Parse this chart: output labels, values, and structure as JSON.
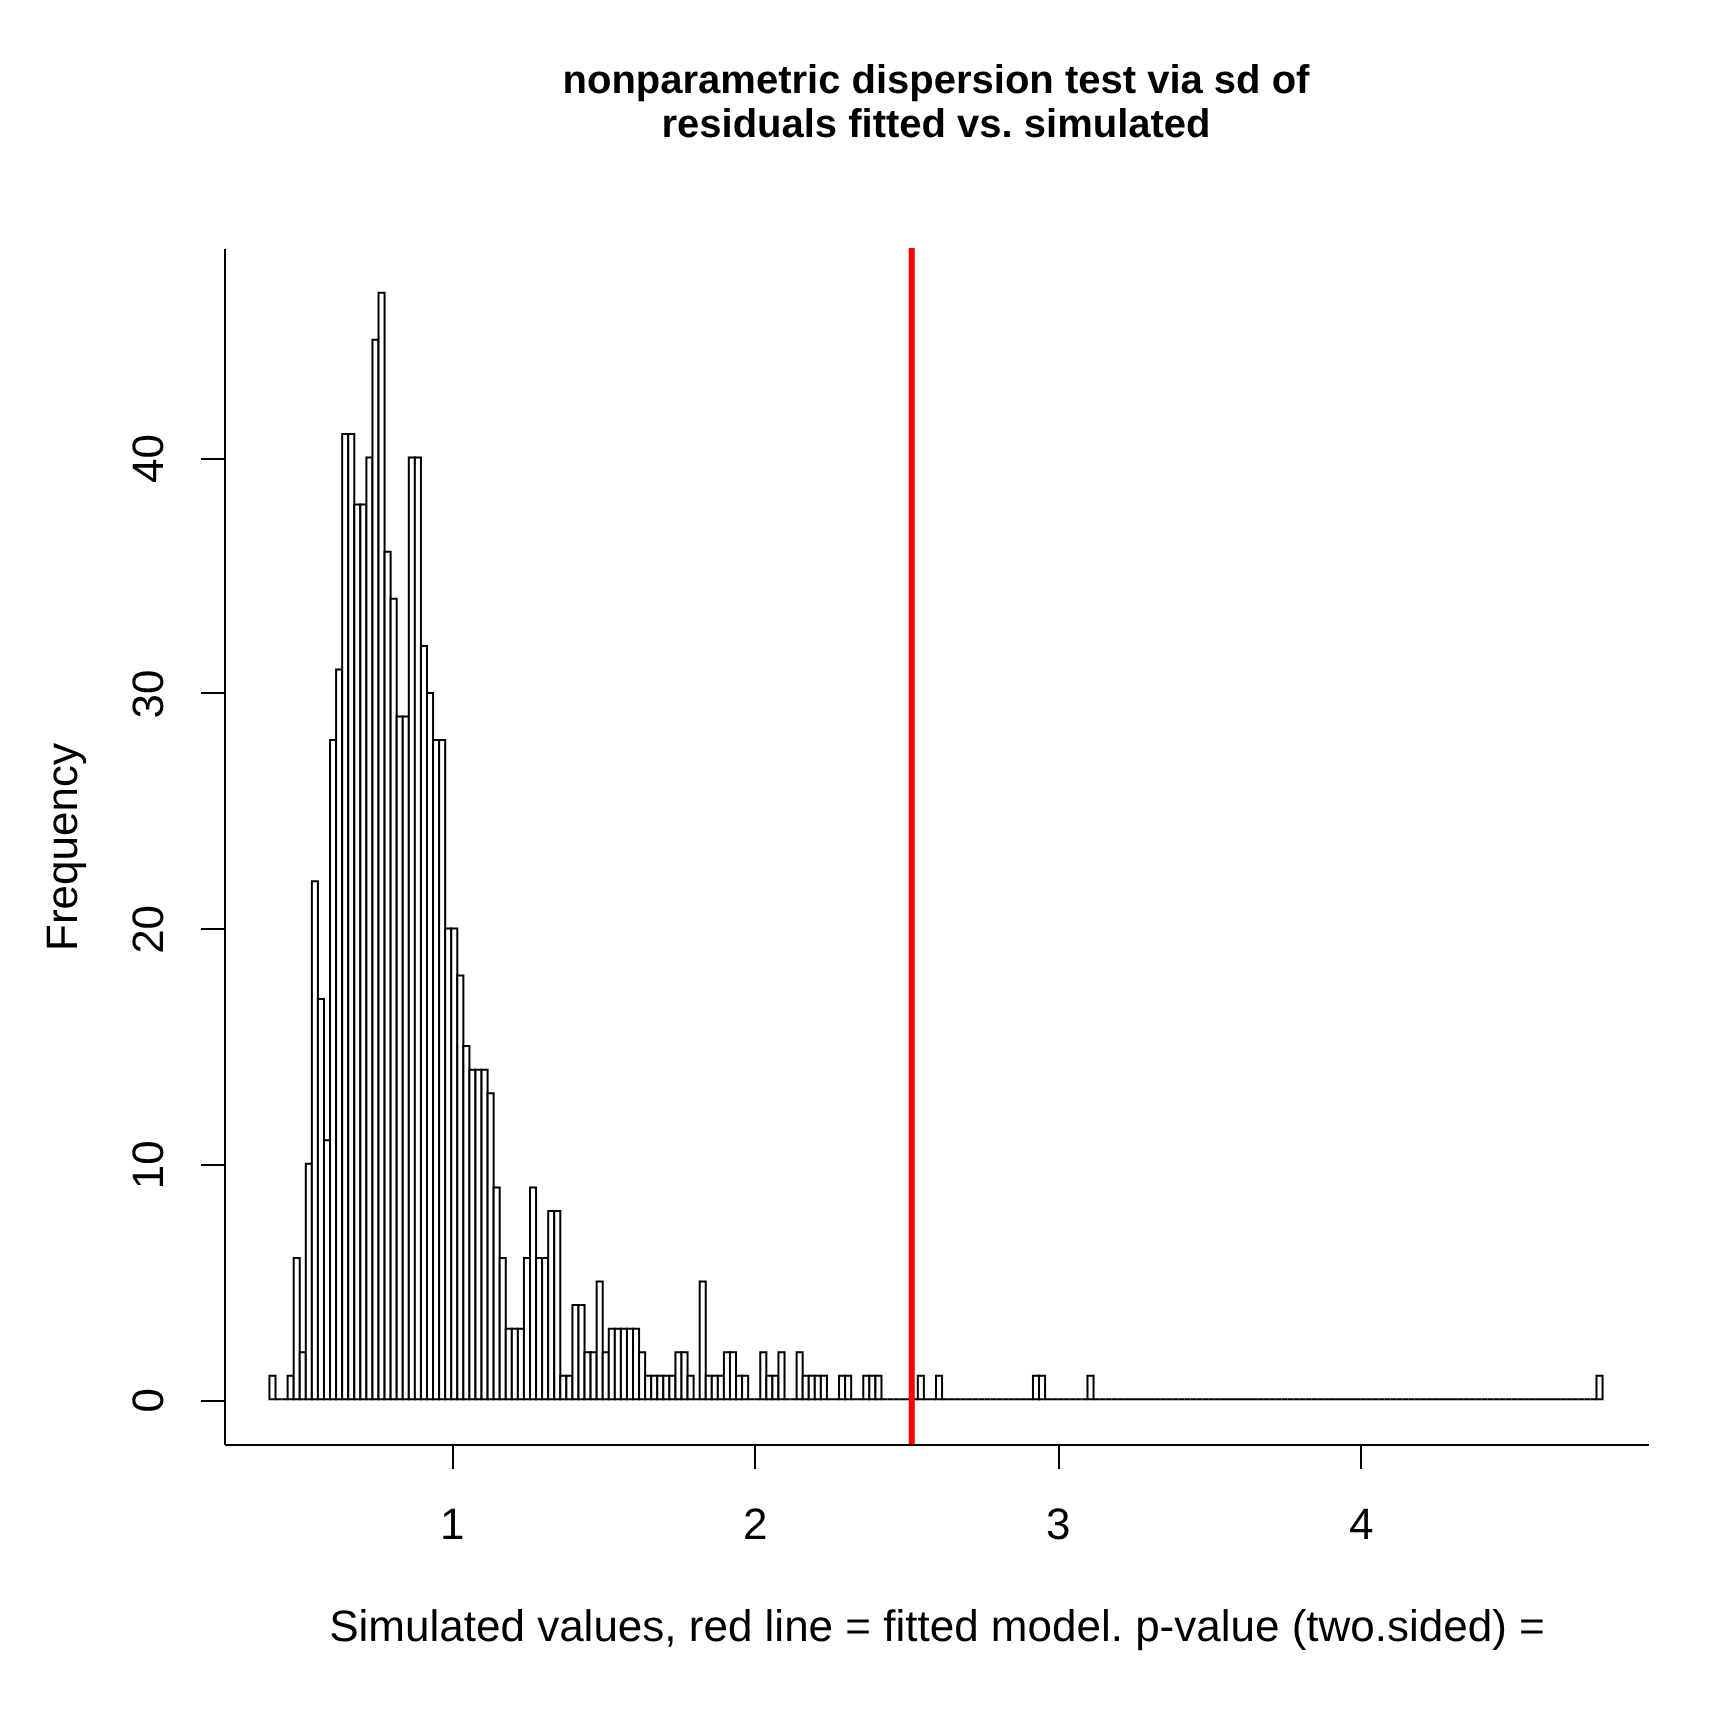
{
  "chart_data": {
    "type": "histogram",
    "title": "nonparametric dispersion test via sd of residuals fitted vs. simulated",
    "xlabel": "Simulated values, red line = fitted model. p-value (two.sided) =",
    "ylabel": "Frequency",
    "bins": [
      0.4,
      0.42,
      0.44,
      0.46,
      0.48,
      0.5,
      0.52,
      0.54,
      0.56,
      0.58,
      0.6,
      0.62,
      0.64,
      0.66,
      0.68,
      0.7,
      0.72,
      0.74,
      0.76,
      0.78,
      0.8,
      0.82,
      0.84,
      0.86,
      0.88,
      0.9,
      0.92,
      0.94,
      0.96,
      0.98,
      1.0,
      1.02,
      1.04,
      1.06,
      1.08,
      1.1,
      1.12,
      1.14,
      1.16,
      1.18,
      1.2,
      1.22,
      1.24,
      1.26,
      1.28,
      1.3,
      1.32,
      1.34,
      1.36,
      1.38,
      1.4,
      1.42,
      1.44,
      1.46,
      1.48,
      1.5,
      1.52,
      1.54,
      1.56,
      1.58,
      1.6,
      1.62,
      1.64,
      1.66,
      1.68,
      1.7,
      1.72,
      1.74,
      1.76,
      1.78,
      1.8,
      1.82,
      1.84,
      1.86,
      1.88,
      1.9,
      1.92,
      1.94,
      1.96,
      1.98,
      2.0,
      2.02,
      2.04,
      2.06,
      2.08,
      2.1,
      2.12,
      2.14,
      2.16,
      2.18,
      2.2,
      2.22,
      2.24,
      2.26,
      2.28,
      2.3,
      2.32,
      2.34,
      2.36,
      2.38,
      2.4,
      2.42,
      2.44,
      2.46,
      2.48,
      2.5,
      2.52,
      2.54,
      2.56,
      2.58,
      2.6,
      2.62,
      2.64,
      2.66,
      2.68,
      2.7,
      2.72,
      2.74,
      2.76,
      2.78,
      2.8,
      2.82,
      2.84,
      2.86,
      2.88,
      2.9,
      2.92,
      2.94,
      2.96,
      2.98,
      3.0,
      3.02,
      3.04,
      3.06,
      3.08,
      3.1,
      3.12,
      3.14,
      3.16,
      3.18,
      3.2,
      3.22,
      3.24,
      3.26,
      3.28,
      3.3,
      3.32,
      3.34,
      3.36,
      3.38,
      3.4,
      3.42,
      3.44,
      3.46,
      3.48,
      3.5,
      3.52,
      3.54,
      3.56,
      3.58,
      3.6,
      3.62,
      3.64,
      3.66,
      3.68,
      3.7,
      3.72,
      3.74,
      3.76,
      3.78,
      3.8,
      3.82,
      3.84,
      3.86,
      3.88,
      3.9,
      3.92,
      3.94,
      3.96,
      3.98,
      4.0,
      4.02,
      4.04,
      4.06,
      4.08,
      4.1,
      4.12,
      4.14,
      4.16,
      4.18,
      4.2,
      4.22,
      4.24,
      4.26,
      4.28,
      4.3,
      4.32,
      4.34,
      4.36,
      4.38,
      4.4,
      4.42,
      4.44,
      4.46,
      4.48,
      4.5,
      4.52,
      4.54,
      4.56,
      4.58,
      4.6,
      4.62,
      4.64,
      4.66,
      4.68,
      4.7,
      4.72,
      4.74,
      4.76,
      4.78,
      4.8
    ],
    "values": [
      1,
      0,
      0,
      1,
      6,
      2,
      10,
      22,
      17,
      11,
      28,
      31,
      41,
      41,
      38,
      38,
      40,
      45,
      47,
      36,
      34,
      29,
      29,
      40,
      40,
      32,
      30,
      28,
      28,
      20,
      20,
      18,
      15,
      14,
      14,
      14,
      13,
      9,
      6,
      3,
      3,
      3,
      6,
      9,
      6,
      6,
      8,
      8,
      1,
      1,
      4,
      4,
      2,
      2,
      5,
      2,
      3,
      3,
      3,
      3,
      3,
      2,
      1,
      1,
      1,
      1,
      1,
      2,
      2,
      1,
      0,
      5,
      1,
      1,
      1,
      2,
      2,
      1,
      1,
      0,
      0,
      2,
      1,
      1,
      2,
      0,
      0,
      2,
      1,
      1,
      1,
      1,
      0,
      0,
      1,
      1,
      0,
      0,
      1,
      1,
      1,
      0,
      0,
      0,
      0,
      0,
      0,
      1,
      0,
      0,
      1,
      0,
      0,
      0,
      0,
      0,
      0,
      0,
      0,
      0,
      0,
      0,
      0,
      0,
      0,
      0,
      1,
      1,
      0,
      0,
      0,
      0,
      0,
      0,
      0,
      1,
      0,
      0,
      0,
      0,
      0,
      0,
      0,
      0,
      0,
      0,
      0,
      0,
      0,
      0,
      0,
      0,
      0,
      0,
      0,
      0,
      0,
      0,
      0,
      0,
      0,
      0,
      0,
      0,
      0,
      0,
      0,
      0,
      0,
      0,
      0,
      0,
      0,
      0,
      0,
      0,
      0,
      0,
      0,
      0,
      0,
      0,
      0,
      0,
      0,
      0,
      0,
      0,
      0,
      0,
      0,
      0,
      0,
      0,
      0,
      0,
      0,
      0,
      0,
      0,
      0,
      0,
      0,
      0,
      0,
      0,
      0,
      0,
      0,
      0,
      0,
      0,
      0,
      0,
      0,
      0,
      0,
      0,
      0,
      1
    ],
    "ref_lines": [
      {
        "axis": "x",
        "value": 2.52,
        "color": "#ff0000"
      }
    ],
    "xlim": [
      0.25,
      4.95
    ],
    "xticks": [
      1,
      2,
      3,
      4
    ],
    "ylim": [
      -1.9,
      48.9
    ],
    "yticks": [
      0,
      10,
      20,
      30,
      40
    ],
    "grid": false
  }
}
